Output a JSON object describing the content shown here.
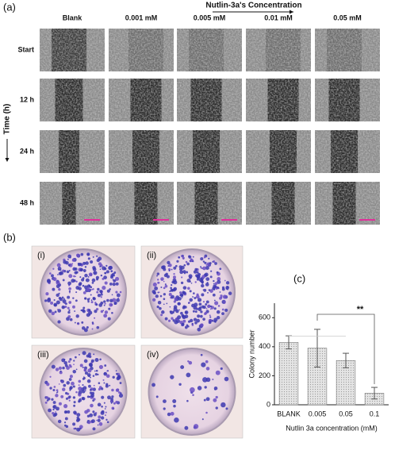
{
  "figure": {
    "panel_labels": [
      "(a)",
      "(b)",
      "(c)"
    ],
    "a": {
      "title": "Nutlin-3a's Concentration",
      "columns": [
        "Blank",
        "0.001 mM",
        "0.005 mM",
        "0.01 mM",
        "0.05 mM"
      ],
      "rows": [
        "Start",
        "12 h",
        "24 h",
        "48 h"
      ],
      "time_label": "Time (h)"
    },
    "b": {
      "dishes": [
        "(i)",
        "(ii)",
        "(iii)",
        "(iv)"
      ]
    }
  },
  "chart_data": {
    "type": "bar",
    "categories": [
      "BLANK",
      "0.005",
      "0.05",
      "0.1"
    ],
    "values": [
      430,
      390,
      305,
      80
    ],
    "errors": [
      45,
      130,
      50,
      40
    ],
    "color": "#dcdcdc",
    "ylim": [
      0,
      700
    ],
    "yticks": [
      0,
      200,
      400,
      600
    ],
    "xlabel": "Nutlin 3a concentration (mM)",
    "ylabel": "Colony number",
    "annotation": "**"
  }
}
